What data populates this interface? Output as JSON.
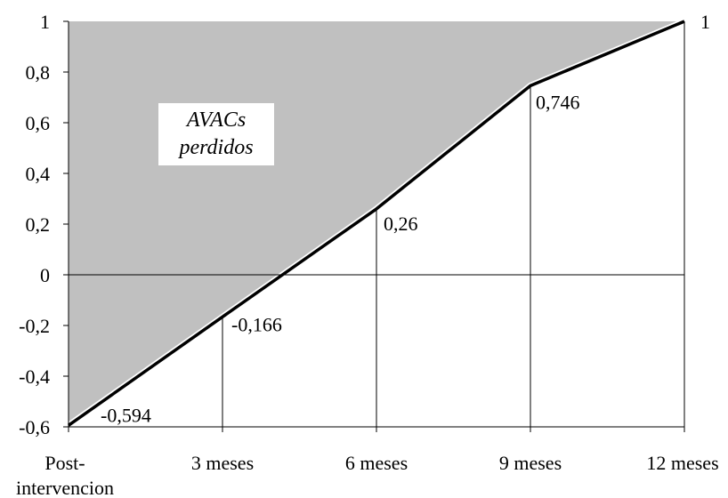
{
  "chart_data": {
    "type": "area",
    "categories": [
      "Post-\nintervencion",
      "3 meses",
      "6 meses",
      "9 meses",
      "12 meses"
    ],
    "values": [
      -0.594,
      -0.166,
      0.26,
      0.746,
      1
    ],
    "data_labels": [
      "-0,594",
      "-0,166",
      "0,26",
      "0,746",
      "1"
    ],
    "ylim": [
      -0.6,
      1
    ],
    "yticks": [
      -0.6,
      -0.4,
      -0.2,
      0,
      0.2,
      0.4,
      0.6,
      0.8,
      1
    ],
    "ytick_labels": [
      "-0,6",
      "-0,4",
      "-0,2",
      "0",
      "0,2",
      "0,4",
      "0,6",
      "0,8",
      "1"
    ],
    "annotation": {
      "line1": "AVACs",
      "line2": "perdidos"
    },
    "title": "",
    "xlabel": "",
    "ylabel": "",
    "grid": false,
    "fill_color": "#c0c0c0",
    "line_color": "#000000"
  }
}
